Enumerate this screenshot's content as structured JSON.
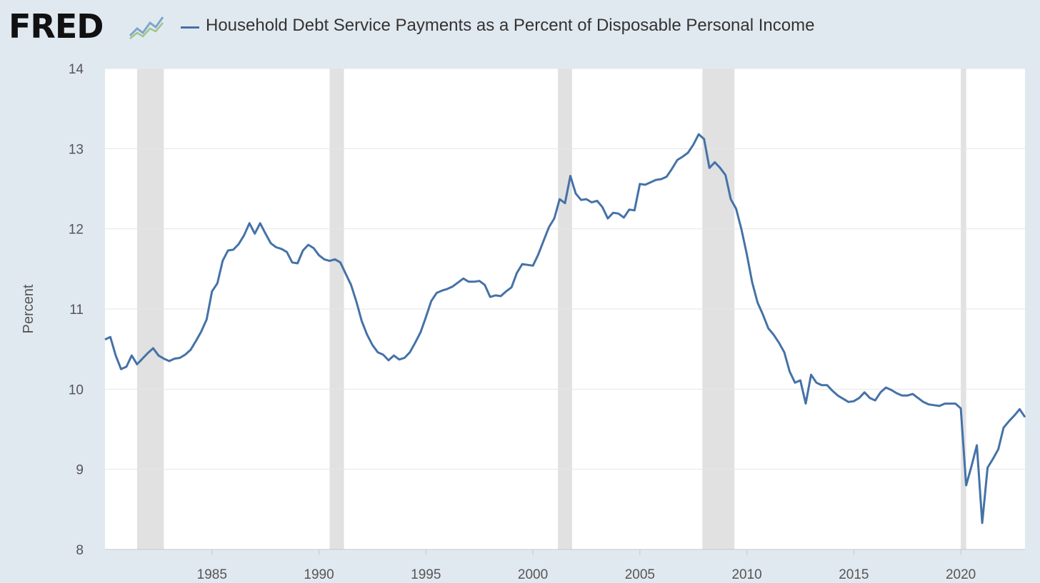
{
  "header": {
    "logo_text": "FRED",
    "logo_icon": "trend-line-icon"
  },
  "colors": {
    "background": "#e1e9f0",
    "plot_background": "#ffffff",
    "series_line": "#4572a7",
    "recession_band": "#e1e1e1",
    "gridline": "#e6e6e6"
  },
  "chart_data": {
    "type": "line",
    "title": "",
    "xlabel": "",
    "ylabel": "Percent",
    "ylim": [
      8,
      14
    ],
    "yticks": [
      8,
      9,
      10,
      11,
      12,
      13,
      14
    ],
    "xlim": [
      1980.0,
      2023.0
    ],
    "xticks": [
      1985,
      1990,
      1995,
      2000,
      2005,
      2010,
      2015,
      2020
    ],
    "grid": true,
    "legend": "top-left",
    "recessions": [
      [
        1981.5,
        1982.75
      ],
      [
        1990.5,
        1991.17
      ],
      [
        2001.17,
        2001.83
      ],
      [
        2007.92,
        2009.42
      ],
      [
        2020.0,
        2020.25
      ]
    ],
    "series": [
      {
        "name": "Household Debt Service Payments as a Percent of Disposable Personal Income",
        "x": [
          1980.0,
          1980.25,
          1980.5,
          1980.75,
          1981.0,
          1981.25,
          1981.5,
          1981.75,
          1982.0,
          1982.25,
          1982.5,
          1982.75,
          1983.0,
          1983.25,
          1983.5,
          1983.75,
          1984.0,
          1984.25,
          1984.5,
          1984.75,
          1985.0,
          1985.25,
          1985.5,
          1985.75,
          1986.0,
          1986.25,
          1986.5,
          1986.75,
          1987.0,
          1987.25,
          1987.5,
          1987.75,
          1988.0,
          1988.25,
          1988.5,
          1988.75,
          1989.0,
          1989.25,
          1989.5,
          1989.75,
          1990.0,
          1990.25,
          1990.5,
          1990.75,
          1991.0,
          1991.25,
          1991.5,
          1991.75,
          1992.0,
          1992.25,
          1992.5,
          1992.75,
          1993.0,
          1993.25,
          1993.5,
          1993.75,
          1994.0,
          1994.25,
          1994.5,
          1994.75,
          1995.0,
          1995.25,
          1995.5,
          1995.75,
          1996.0,
          1996.25,
          1996.5,
          1996.75,
          1997.0,
          1997.25,
          1997.5,
          1997.75,
          1998.0,
          1998.25,
          1998.5,
          1998.75,
          1999.0,
          1999.25,
          1999.5,
          1999.75,
          2000.0,
          2000.25,
          2000.5,
          2000.75,
          2001.0,
          2001.25,
          2001.5,
          2001.75,
          2002.0,
          2002.25,
          2002.5,
          2002.75,
          2003.0,
          2003.25,
          2003.5,
          2003.75,
          2004.0,
          2004.25,
          2004.5,
          2004.75,
          2005.0,
          2005.25,
          2005.5,
          2005.75,
          2006.0,
          2006.25,
          2006.5,
          2006.75,
          2007.0,
          2007.25,
          2007.5,
          2007.75,
          2008.0,
          2008.25,
          2008.5,
          2008.75,
          2009.0,
          2009.25,
          2009.5,
          2009.75,
          2010.0,
          2010.25,
          2010.5,
          2010.75,
          2011.0,
          2011.25,
          2011.5,
          2011.75,
          2012.0,
          2012.25,
          2012.5,
          2012.75,
          2013.0,
          2013.25,
          2013.5,
          2013.75,
          2014.0,
          2014.25,
          2014.5,
          2014.75,
          2015.0,
          2015.25,
          2015.5,
          2015.75,
          2016.0,
          2016.25,
          2016.5,
          2016.75,
          2017.0,
          2017.25,
          2017.5,
          2017.75,
          2018.0,
          2018.25,
          2018.5,
          2018.75,
          2019.0,
          2019.25,
          2019.5,
          2019.75,
          2020.0,
          2020.25,
          2020.5,
          2020.75,
          2021.0,
          2021.25,
          2021.5,
          2021.75,
          2022.0,
          2022.25,
          2022.5,
          2022.75,
          2023.0
        ],
        "values": [
          10.62,
          10.65,
          10.42,
          10.25,
          10.28,
          10.42,
          10.31,
          10.38,
          10.45,
          10.51,
          10.42,
          10.38,
          10.35,
          10.38,
          10.39,
          10.43,
          10.49,
          10.6,
          10.72,
          10.87,
          11.22,
          11.32,
          11.6,
          11.73,
          11.74,
          11.81,
          11.92,
          12.07,
          11.94,
          12.07,
          11.94,
          11.82,
          11.77,
          11.75,
          11.71,
          11.58,
          11.57,
          11.73,
          11.8,
          11.76,
          11.67,
          11.62,
          11.6,
          11.62,
          11.58,
          11.44,
          11.3,
          11.09,
          10.85,
          10.68,
          10.55,
          10.46,
          10.43,
          10.36,
          10.42,
          10.37,
          10.39,
          10.46,
          10.58,
          10.71,
          10.9,
          11.1,
          11.2,
          11.23,
          11.25,
          11.28,
          11.33,
          11.38,
          11.34,
          11.34,
          11.35,
          11.3,
          11.15,
          11.17,
          11.16,
          11.22,
          11.27,
          11.45,
          11.56,
          11.55,
          11.54,
          11.68,
          11.85,
          12.02,
          12.13,
          12.37,
          12.32,
          12.66,
          12.44,
          12.36,
          12.37,
          12.33,
          12.35,
          12.27,
          12.13,
          12.2,
          12.19,
          12.14,
          12.24,
          12.23,
          12.56,
          12.55,
          12.58,
          12.61,
          12.62,
          12.65,
          12.75,
          12.86,
          12.9,
          12.95,
          13.05,
          13.18,
          13.12,
          12.76,
          12.83,
          12.76,
          12.67,
          12.37,
          12.25,
          11.99,
          11.68,
          11.33,
          11.08,
          10.93,
          10.76,
          10.68,
          10.58,
          10.46,
          10.22,
          10.08,
          10.11,
          9.82,
          10.18,
          10.08,
          10.05,
          10.05,
          9.98,
          9.92,
          9.88,
          9.84,
          9.85,
          9.89,
          9.96,
          9.89,
          9.86,
          9.96,
          10.02,
          9.99,
          9.95,
          9.92,
          9.92,
          9.94,
          9.89,
          9.84,
          9.81,
          9.8,
          9.79,
          9.82,
          9.82,
          9.82,
          9.76,
          8.8,
          9.04,
          9.3,
          8.33,
          9.02,
          9.13,
          9.25,
          9.52,
          9.6,
          9.67,
          9.75,
          9.65
        ]
      }
    ]
  }
}
